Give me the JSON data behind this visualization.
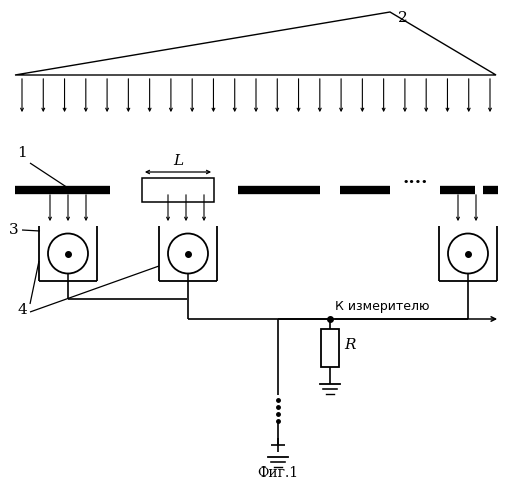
{
  "bg_color": "#ffffff",
  "fig_caption": "Фиг.1",
  "label_2": "2",
  "label_1": "1",
  "label_3": "3",
  "label_4": "4",
  "label_L": "L",
  "label_R": "R",
  "label_K": "К измерителю",
  "line_color": "#000000"
}
